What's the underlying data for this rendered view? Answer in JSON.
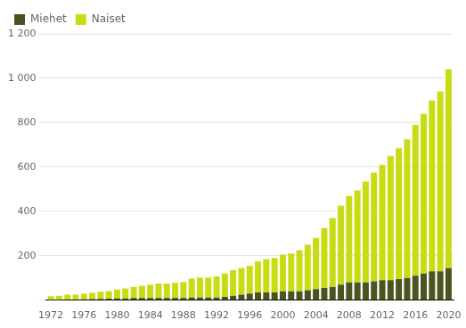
{
  "chart_data": {
    "type": "bar",
    "stacked": true,
    "x": [
      1972,
      1973,
      1974,
      1975,
      1976,
      1977,
      1978,
      1979,
      1980,
      1981,
      1982,
      1983,
      1984,
      1985,
      1986,
      1987,
      1988,
      1989,
      1990,
      1991,
      1992,
      1993,
      1994,
      1995,
      1996,
      1997,
      1998,
      1999,
      2000,
      2001,
      2002,
      2003,
      2004,
      2005,
      2006,
      2007,
      2008,
      2009,
      2010,
      2011,
      2012,
      2013,
      2014,
      2015,
      2016,
      2017,
      2018,
      2019,
      2020
    ],
    "series": [
      {
        "name": "Miehet",
        "color": "#4b5320",
        "values": [
          2,
          2,
          3,
          3,
          4,
          5,
          6,
          7,
          8,
          8,
          10,
          10,
          10,
          10,
          10,
          10,
          10,
          12,
          12,
          12,
          12,
          15,
          20,
          25,
          30,
          35,
          35,
          35,
          40,
          40,
          40,
          45,
          50,
          55,
          60,
          70,
          80,
          80,
          80,
          85,
          90,
          90,
          95,
          100,
          110,
          120,
          130,
          130,
          145
        ]
      },
      {
        "name": "Naiset",
        "color": "#c8dc14",
        "values": [
          16,
          18,
          22,
          22,
          25,
          28,
          32,
          34,
          40,
          45,
          50,
          55,
          60,
          65,
          65,
          68,
          72,
          85,
          90,
          90,
          95,
          105,
          115,
          120,
          125,
          140,
          150,
          155,
          165,
          170,
          185,
          205,
          230,
          270,
          310,
          355,
          390,
          415,
          455,
          490,
          520,
          560,
          590,
          625,
          680,
          720,
          770,
          810,
          895
        ]
      }
    ],
    "xlim": [
      1971.4,
      2020.6
    ],
    "xticks": [
      1972,
      1976,
      1980,
      1984,
      1988,
      1992,
      1996,
      2000,
      2004,
      2008,
      2012,
      2016,
      2020
    ],
    "ylim": [
      0,
      1200
    ],
    "yticks": [
      {
        "value": 0,
        "label": ""
      },
      200,
      400,
      600,
      800,
      {
        "value": 1000,
        "label": "1 000"
      },
      {
        "value": 1200,
        "label": "1 200"
      }
    ],
    "grid": true,
    "legend": "upper left"
  }
}
